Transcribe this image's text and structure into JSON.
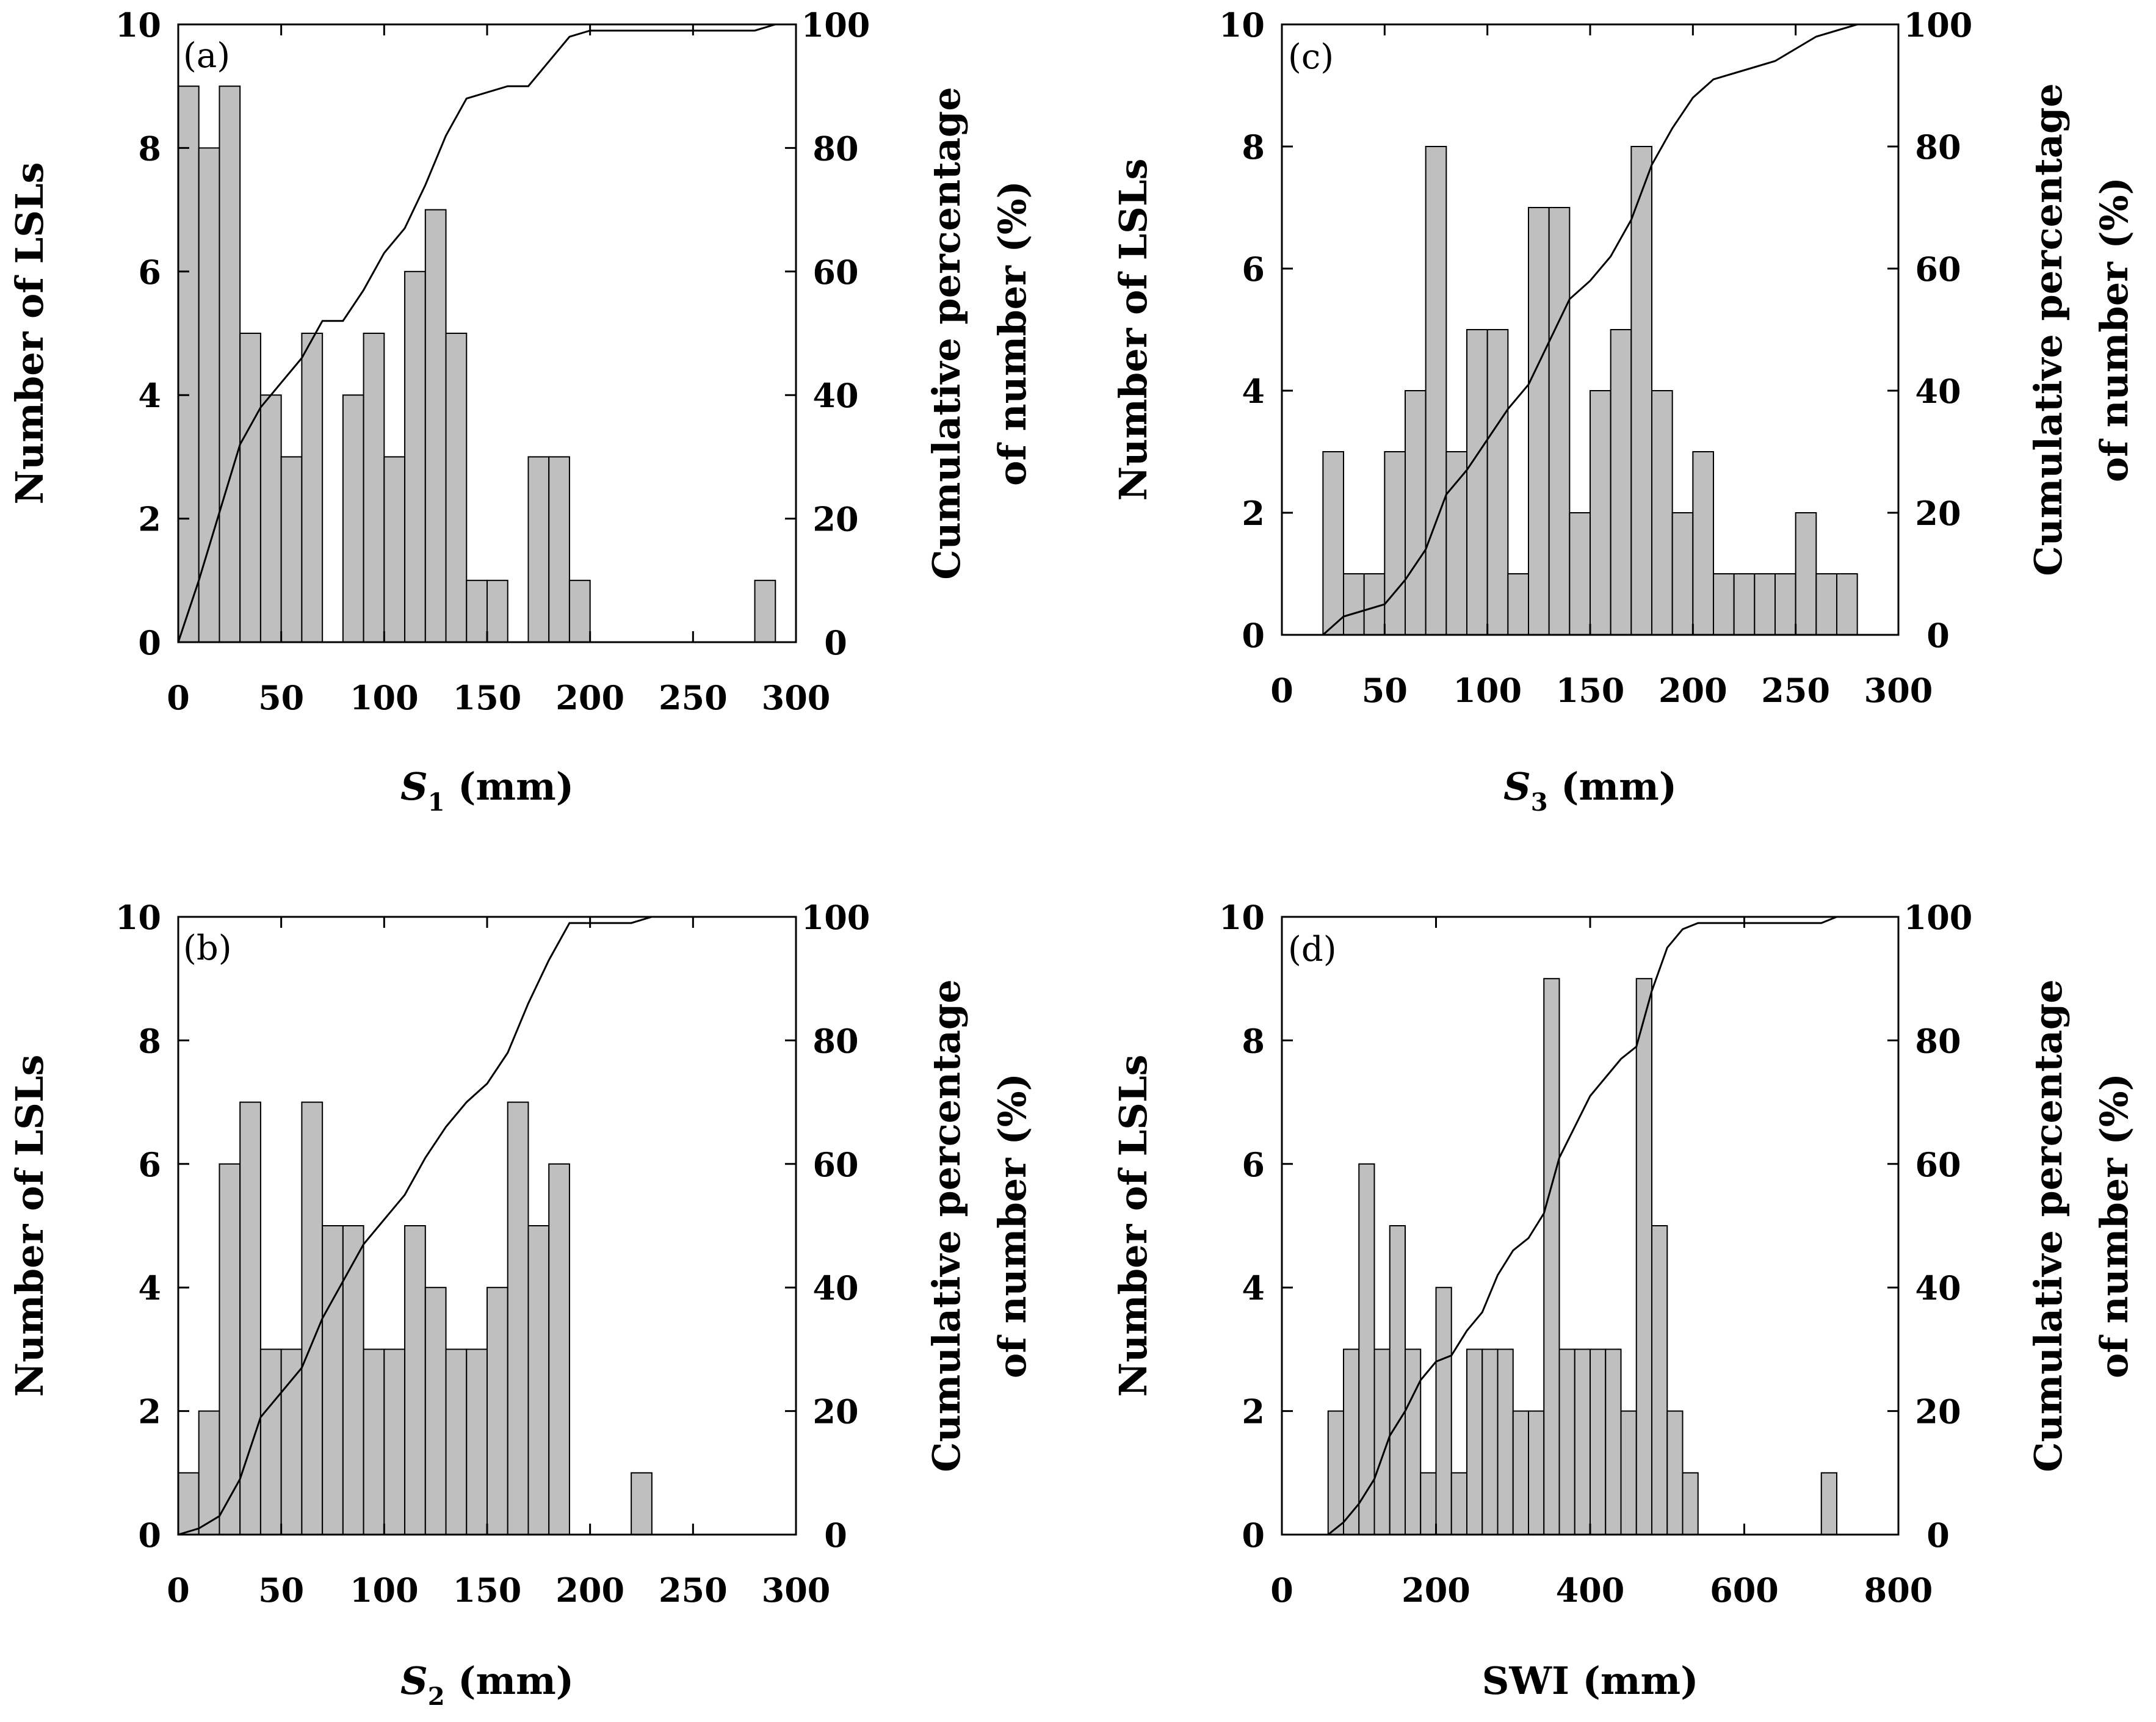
{
  "chart_data": [
    {
      "type": "bar",
      "panel_label": "(a)",
      "xlabel_var": "S",
      "xlabel_sub": "1",
      "xlabel_rest": " (mm)",
      "ylabel": "Number of LSLs",
      "y2label_line1": "Cumulative percentage",
      "y2label_line2": "of number (%)",
      "xlim": [
        0,
        300
      ],
      "ylim": [
        0,
        10
      ],
      "y2lim": [
        0,
        100
      ],
      "xticks": [
        "0",
        "50",
        "100",
        "150",
        "200",
        "250",
        "300"
      ],
      "yticks": [
        "0",
        "2",
        "4",
        "6",
        "8",
        "10"
      ],
      "y2ticks": [
        "0",
        "20",
        "40",
        "60",
        "80",
        "100"
      ],
      "bin_width": 10,
      "bin_start": 0,
      "values": [
        9,
        8,
        9,
        5,
        4,
        3,
        5,
        0,
        4,
        5,
        3,
        6,
        7,
        5,
        1,
        1,
        0,
        3,
        3,
        1,
        0,
        0,
        0,
        0,
        0,
        0,
        0,
        0,
        1,
        0
      ],
      "cumulative": {
        "x": [
          0,
          10,
          20,
          30,
          40,
          50,
          60,
          70,
          80,
          90,
          100,
          110,
          120,
          130,
          140,
          150,
          160,
          170,
          180,
          190,
          200,
          280,
          290,
          300
        ],
        "y": [
          0,
          10,
          21,
          32,
          38,
          42,
          46,
          52,
          52,
          57,
          63,
          67,
          74,
          82,
          88,
          89,
          90,
          90,
          94,
          98,
          99,
          99,
          100,
          100
        ]
      }
    },
    {
      "type": "bar",
      "panel_label": "(b)",
      "xlabel_var": "S",
      "xlabel_sub": "2",
      "xlabel_rest": " (mm)",
      "ylabel": "Number of LSLs",
      "y2label_line1": "Cumulative percentage",
      "y2label_line2": "of number (%)",
      "xlim": [
        0,
        300
      ],
      "ylim": [
        0,
        10
      ],
      "y2lim": [
        0,
        100
      ],
      "xticks": [
        "0",
        "50",
        "100",
        "150",
        "200",
        "250",
        "300"
      ],
      "yticks": [
        "0",
        "2",
        "4",
        "6",
        "8",
        "10"
      ],
      "y2ticks": [
        "0",
        "20",
        "40",
        "60",
        "80",
        "100"
      ],
      "bin_width": 10,
      "bin_start": 0,
      "values": [
        1,
        2,
        6,
        7,
        3,
        3,
        7,
        5,
        5,
        3,
        3,
        5,
        4,
        3,
        3,
        4,
        7,
        5,
        6,
        0,
        0,
        0,
        1,
        0,
        0,
        0,
        0,
        0,
        0,
        0
      ],
      "cumulative": {
        "x": [
          0,
          10,
          20,
          30,
          40,
          50,
          60,
          70,
          80,
          90,
          100,
          110,
          120,
          130,
          140,
          150,
          160,
          170,
          180,
          190,
          220,
          230,
          240,
          300
        ],
        "y": [
          0,
          1,
          3,
          9,
          19,
          23,
          27,
          35,
          41,
          47,
          51,
          55,
          61,
          66,
          70,
          73,
          78,
          86,
          93,
          99,
          99,
          100,
          100,
          100
        ]
      }
    },
    {
      "type": "bar",
      "panel_label": "(c)",
      "xlabel_var": "S",
      "xlabel_sub": "3",
      "xlabel_rest": " (mm)",
      "ylabel": "Number of LSLs",
      "y2label_line1": "Cumulative percentage",
      "y2label_line2": "of number (%)",
      "xlim": [
        0,
        300
      ],
      "ylim": [
        0,
        10
      ],
      "y2lim": [
        0,
        100
      ],
      "xticks": [
        "0",
        "50",
        "100",
        "150",
        "200",
        "250",
        "300"
      ],
      "yticks": [
        "0",
        "2",
        "4",
        "6",
        "8",
        "10"
      ],
      "y2ticks": [
        "0",
        "20",
        "40",
        "60",
        "80",
        "100"
      ],
      "bin_width": 10,
      "bin_start": 20,
      "values": [
        3,
        1,
        1,
        3,
        4,
        8,
        3,
        5,
        5,
        1,
        7,
        7,
        2,
        4,
        5,
        8,
        4,
        2,
        3,
        1,
        1,
        1,
        1,
        2,
        1,
        1
      ],
      "cumulative": {
        "x": [
          20,
          30,
          40,
          50,
          60,
          70,
          80,
          90,
          100,
          110,
          120,
          130,
          140,
          150,
          160,
          170,
          180,
          190,
          200,
          210,
          220,
          230,
          240,
          250,
          260,
          270,
          280,
          300
        ],
        "y": [
          0,
          3,
          4,
          5,
          9,
          14,
          23,
          27,
          32,
          37,
          41,
          48,
          55,
          58,
          62,
          68,
          77,
          83,
          88,
          91,
          92,
          93,
          94,
          96,
          98,
          99,
          100,
          100
        ]
      }
    },
    {
      "type": "bar",
      "panel_label": "(d)",
      "xlabel_var": "",
      "xlabel_sub": "",
      "xlabel_rest": "SWI (mm)",
      "ylabel": "Number of LSLs",
      "y2label_line1": "Cumulative percentage",
      "y2label_line2": "of number (%)",
      "xlim": [
        0,
        800
      ],
      "ylim": [
        0,
        10
      ],
      "y2lim": [
        0,
        100
      ],
      "xticks": [
        "0",
        "200",
        "400",
        "600",
        "800"
      ],
      "yticks": [
        "0",
        "2",
        "4",
        "6",
        "8",
        "10"
      ],
      "y2ticks": [
        "0",
        "20",
        "40",
        "60",
        "80",
        "100"
      ],
      "bin_width": 20,
      "bin_start": 60,
      "values": [
        2,
        3,
        6,
        3,
        5,
        3,
        1,
        4,
        1,
        3,
        3,
        3,
        2,
        2,
        9,
        3,
        3,
        3,
        3,
        2,
        9,
        5,
        2,
        1,
        0,
        0,
        0,
        0,
        0,
        0,
        0,
        0,
        1
      ],
      "cumulative": {
        "x": [
          60,
          80,
          100,
          120,
          140,
          160,
          180,
          200,
          220,
          240,
          260,
          280,
          300,
          320,
          340,
          360,
          380,
          400,
          420,
          440,
          460,
          480,
          500,
          520,
          540,
          700,
          720,
          800
        ],
        "y": [
          0,
          2,
          5,
          9,
          16,
          20,
          25,
          28,
          29,
          33,
          36,
          42,
          46,
          48,
          52,
          61,
          66,
          71,
          74,
          77,
          79,
          88,
          95,
          98,
          99,
          99,
          100,
          100
        ]
      }
    }
  ]
}
